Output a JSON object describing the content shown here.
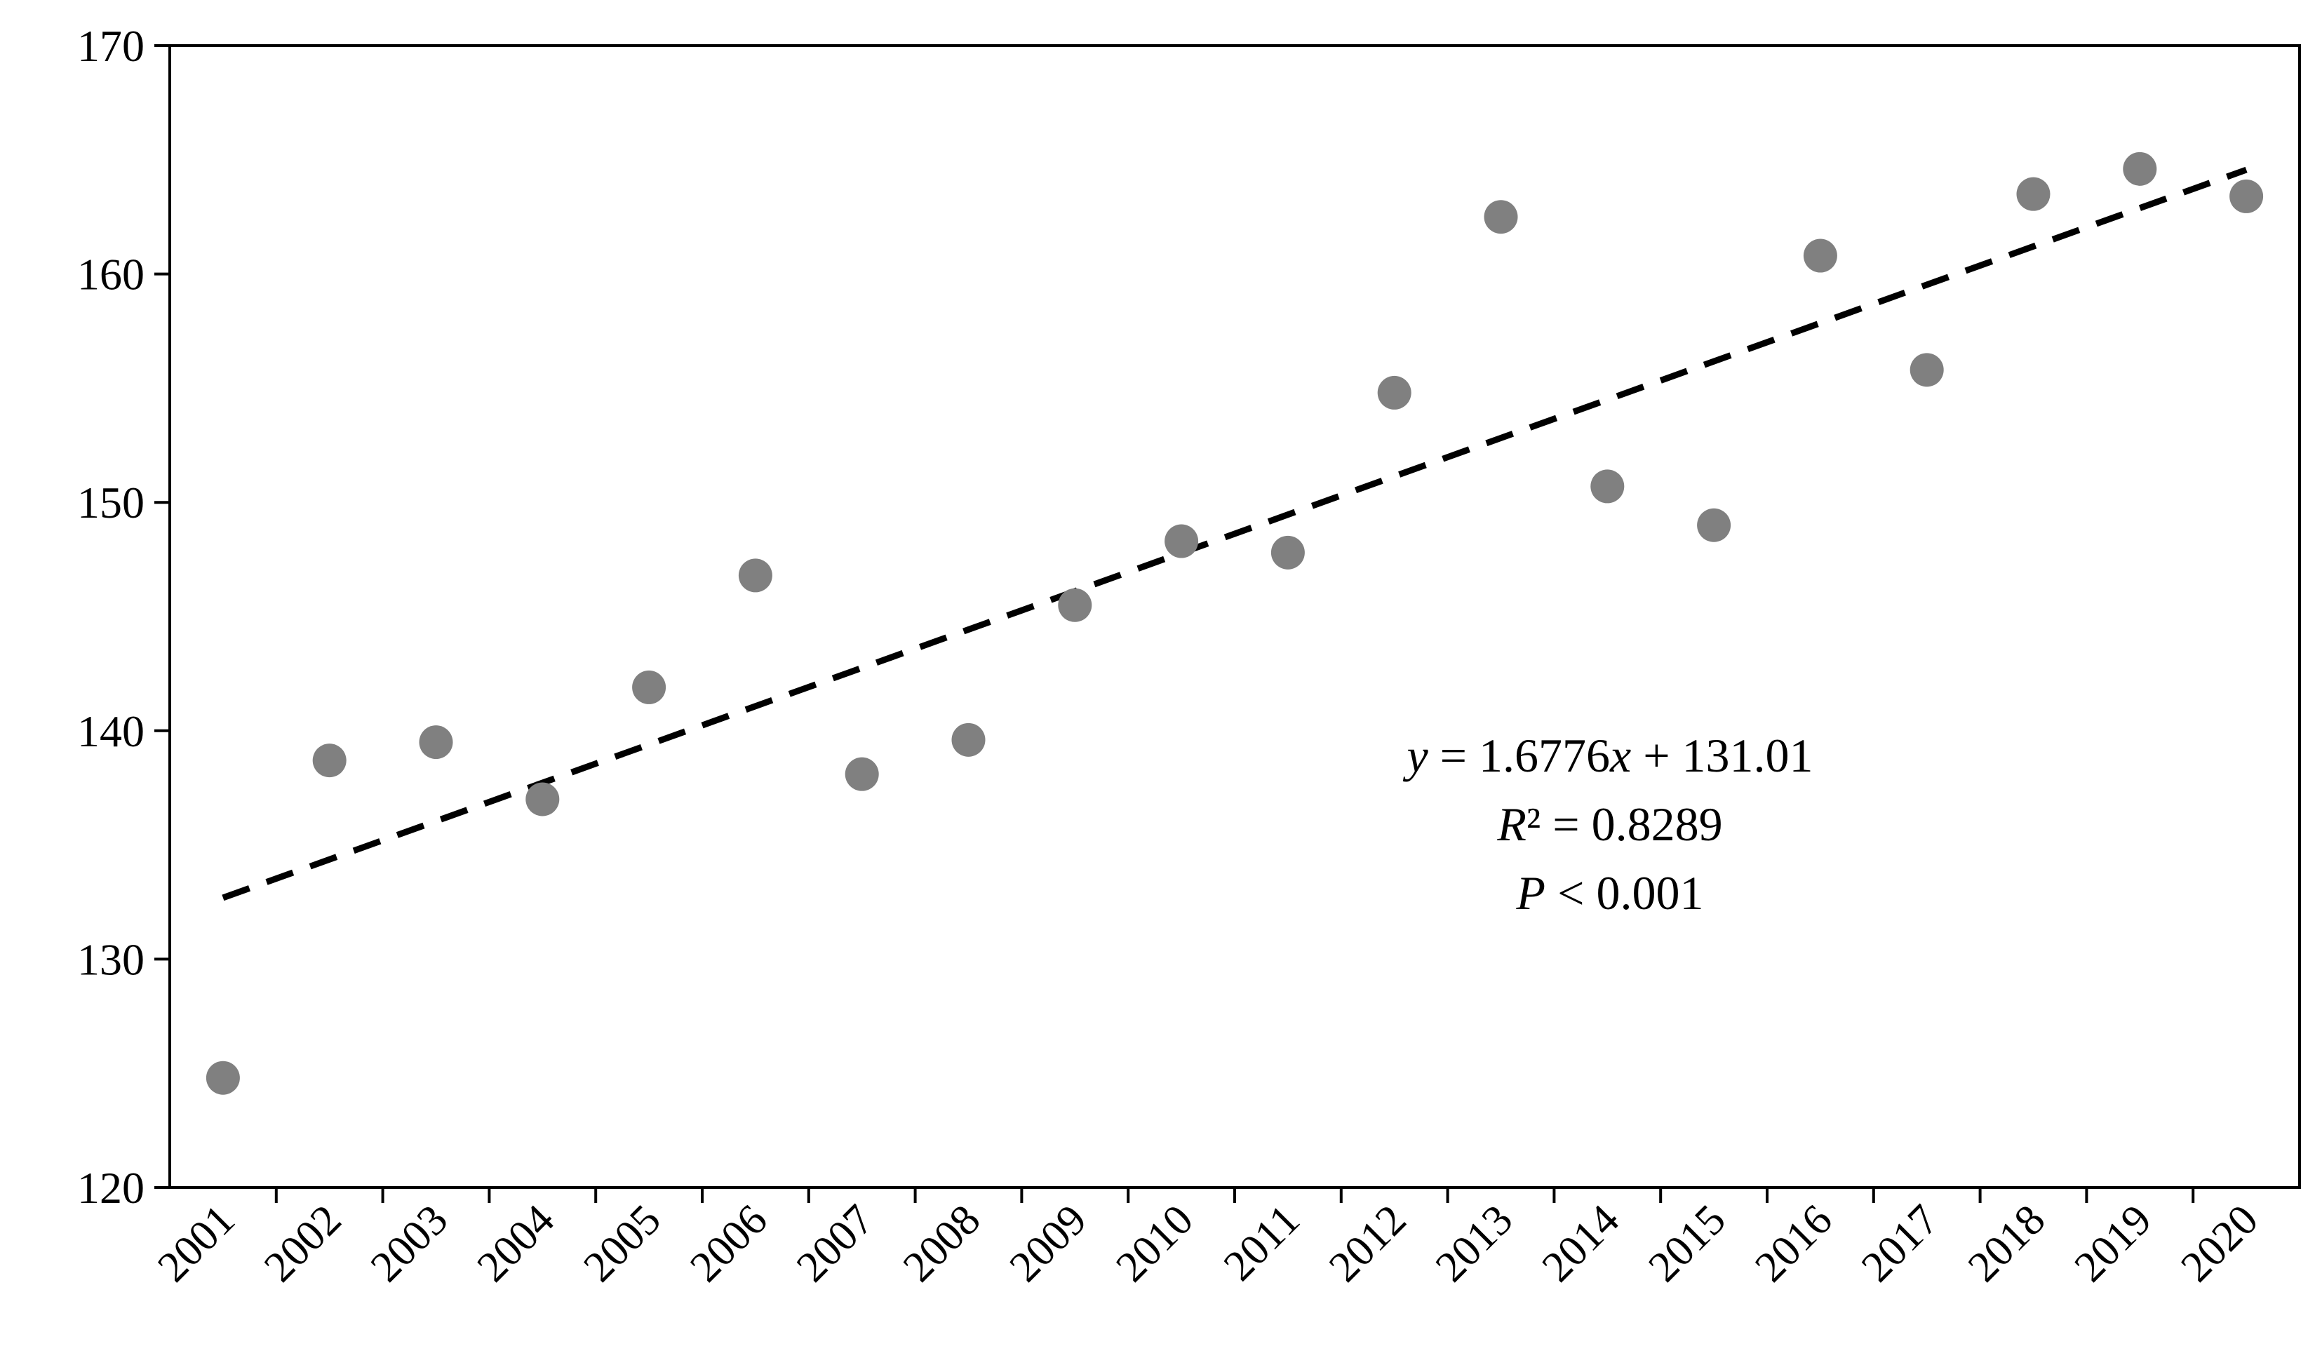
{
  "chart_data": {
    "type": "scatter",
    "title": "",
    "xlabel": "",
    "ylabel": "",
    "categories": [
      "2001",
      "2002",
      "2003",
      "2004",
      "2005",
      "2006",
      "2007",
      "2008",
      "2009",
      "2010",
      "2011",
      "2012",
      "2013",
      "2014",
      "2015",
      "2016",
      "2017",
      "2018",
      "2019",
      "2020"
    ],
    "series": [
      {
        "values": [
          124.8,
          138.7,
          139.5,
          137.0,
          141.9,
          146.8,
          138.1,
          139.6,
          145.5,
          148.3,
          147.8,
          154.8,
          162.5,
          150.7,
          149.0,
          160.8,
          155.8,
          163.5,
          164.6,
          163.4
        ],
        "color": "#808080"
      }
    ],
    "trendline": {
      "slope": 1.6776,
      "intercept": 131.01,
      "style": "dashed",
      "color": "#000000"
    },
    "ylim": [
      120,
      170
    ],
    "yticks": [
      "120",
      "130",
      "140",
      "150",
      "160",
      "170"
    ],
    "grid": false,
    "legend": "none",
    "annotations": {
      "equation_y": "y",
      "equation_mid": " = 1.6776",
      "equation_x": "x",
      "equation_rest": " + 131.01",
      "r2_symbol": "R",
      "r2_rest": "² = 0.8289",
      "p_symbol": "P",
      "p_rest": " < 0.001"
    }
  }
}
